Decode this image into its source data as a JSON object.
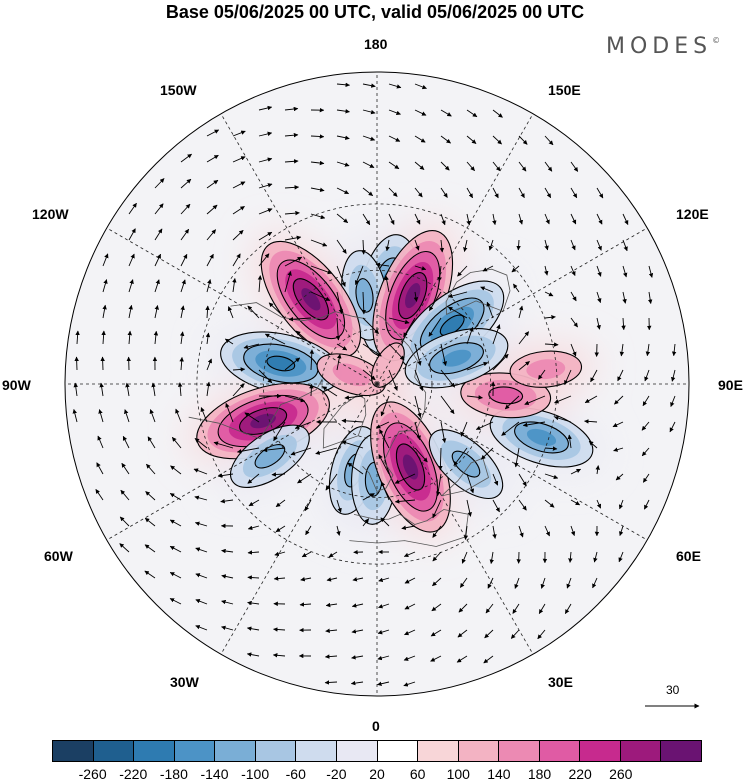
{
  "title": "Base 05/06/2025 00 UTC, valid 05/06/2025 00 UTC",
  "brand": "MODES",
  "brand_mark": "©",
  "longitude_labels": {
    "l180": "180",
    "l150e": "150E",
    "l120e": "120E",
    "l90e": "90E",
    "l60e": "60E",
    "l30e": "30E",
    "l0": "0",
    "l30w": "30W",
    "l60w": "60W",
    "l90w": "90W",
    "l120w": "120W",
    "l150w": "150W"
  },
  "reference_vector": {
    "value": "30",
    "icon": "arrow-right-icon"
  },
  "colorbar": {
    "colors": [
      "#1b3f63",
      "#1f5f8f",
      "#2e7bb1",
      "#4c93c6",
      "#7aaed6",
      "#a8c6e3",
      "#cfdcee",
      "#e8e8f3",
      "#ffffff",
      "#f8d6d8",
      "#f3b3c3",
      "#ec8ab3",
      "#e05ba4",
      "#c72a8e",
      "#9d1a7c",
      "#6a1372"
    ],
    "tick_labels": [
      "-260",
      "-220",
      "-180",
      "-140",
      "-100",
      "-60",
      "-20",
      "20",
      "60",
      "100",
      "140",
      "180",
      "220",
      "260"
    ]
  },
  "anomaly_centers": [
    {
      "lon": 172,
      "lat": 58,
      "sign": "negative",
      "level": 5
    },
    {
      "lon": -172,
      "lat": 58,
      "sign": "negative",
      "level": 3
    },
    {
      "lon": 158,
      "lat": 56,
      "sign": "positive",
      "level": 6
    },
    {
      "lon": 128,
      "lat": 56,
      "sign": "negative",
      "level": 5
    },
    {
      "lon": -142,
      "lat": 52,
      "sign": "positive",
      "level": 6
    },
    {
      "lon": -102,
      "lat": 55,
      "sign": "negative",
      "level": 5
    },
    {
      "lon": -72,
      "lat": 48,
      "sign": "positive",
      "level": 6
    },
    {
      "lon": -56,
      "lat": 45,
      "sign": "negative",
      "level": 3
    },
    {
      "lon": -15,
      "lat": 58,
      "sign": "negative",
      "level": 3
    },
    {
      "lon": -2,
      "lat": 56,
      "sign": "negative",
      "level": 3
    },
    {
      "lon": 22,
      "lat": 58,
      "sign": "positive",
      "level": 6
    },
    {
      "lon": 48,
      "lat": 48,
      "sign": "negative",
      "level": 3
    },
    {
      "lon": 72,
      "lat": 32,
      "sign": "negative",
      "level": 4
    },
    {
      "lon": 85,
      "lat": 45,
      "sign": "positive",
      "level": 3
    },
    {
      "lon": 108,
      "lat": 60,
      "sign": "negative",
      "level": 4
    },
    {
      "lon": 95,
      "lat": 33,
      "sign": "positive",
      "level": 2
    },
    {
      "lon": -110,
      "lat": 80,
      "sign": "positive",
      "level": 2
    },
    {
      "lon": 150,
      "lat": 82,
      "sign": "positive",
      "level": 1
    }
  ]
}
